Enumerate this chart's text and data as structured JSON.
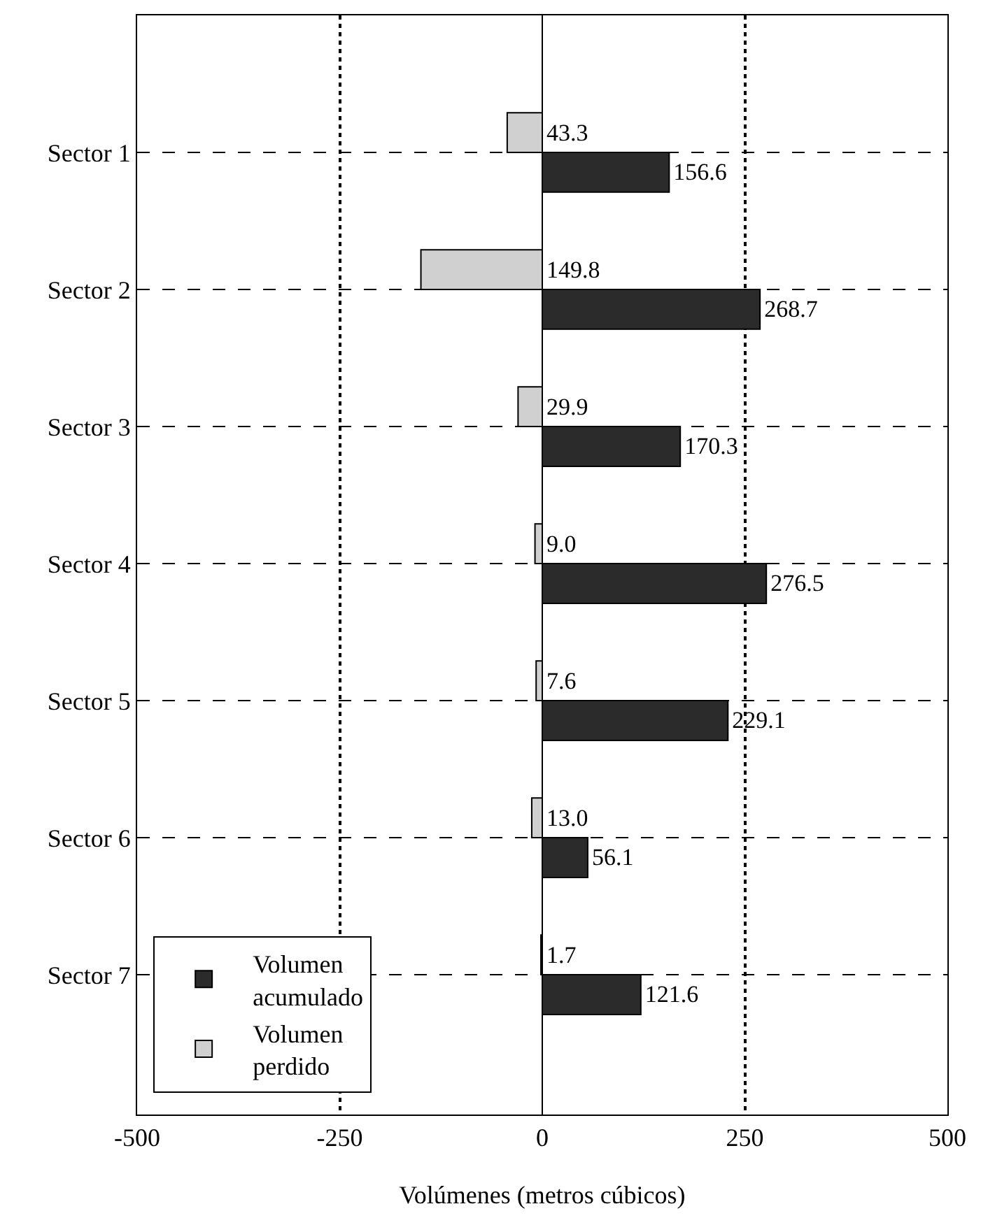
{
  "chart_data": {
    "type": "bar",
    "orientation": "horizontal",
    "xlabel": "Volúmenes (metros cúbicos)",
    "categories": [
      "Sector 1",
      "Sector 2",
      "Sector 3",
      "Sector 4",
      "Sector 5",
      "Sector 6",
      "Sector 7"
    ],
    "series": [
      {
        "name": "Volumen acumulado",
        "color": "#2b2b2b",
        "values": [
          156.6,
          268.7,
          170.3,
          276.5,
          229.1,
          56.1,
          121.6
        ],
        "value_labels": [
          "156.6",
          "268.7",
          "170.3",
          "276.5",
          "229.1",
          "56.1",
          "121.6"
        ]
      },
      {
        "name": "Volumen perdido",
        "color": "#d0d0d0",
        "values": [
          43.3,
          149.8,
          29.9,
          9.0,
          7.6,
          13.0,
          1.7
        ],
        "base": [
          -43.3,
          -149.8,
          -29.9,
          -9.0,
          -7.6,
          -13.0,
          -1.7
        ],
        "value_labels": [
          "43.3",
          "149.8",
          "29.9",
          "9.0",
          "7.6",
          "13.0",
          "1.7"
        ]
      }
    ],
    "xlim": [
      -500,
      500
    ],
    "xticks": [
      -500,
      -250,
      0,
      250,
      500
    ],
    "grid": true,
    "legend": "bottom left"
  }
}
